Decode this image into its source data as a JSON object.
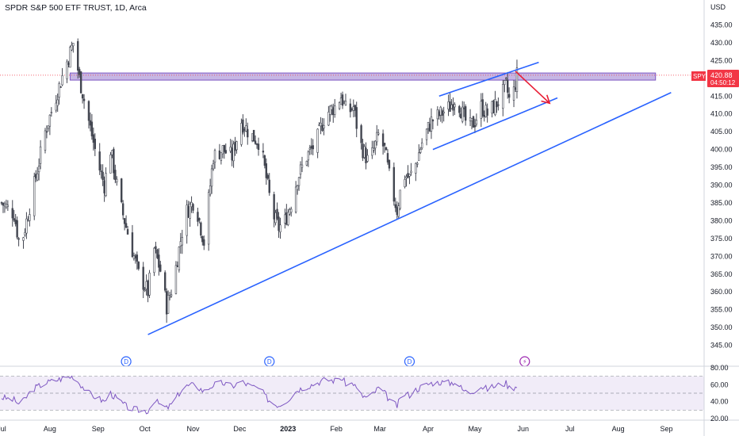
{
  "header": {
    "title": "SPDR S&P 500 ETF TRUST, 1D, Arca"
  },
  "axis": {
    "currency": "USD"
  },
  "price_label": {
    "symbol": "SPY",
    "price": "420.88",
    "countdown": "04:50:12"
  },
  "chart_data": {
    "type": "candlestick",
    "title": "SPDR S&P 500 ETF TRUST, 1D, Arca",
    "ylim": [
      340,
      438
    ],
    "yticks": [
      345,
      350,
      355,
      360,
      365,
      370,
      375,
      380,
      385,
      390,
      395,
      400,
      405,
      410,
      415,
      420,
      425,
      430,
      435
    ],
    "ytick_labels": [
      "345.00",
      "350.00",
      "355.00",
      "360.00",
      "365.00",
      "370.00",
      "375.00",
      "380.00",
      "385.00",
      "390.00",
      "395.00",
      "400.00",
      "405.00",
      "410.00",
      "415.00",
      "420.00",
      "425.00",
      "430.00",
      "435.00"
    ],
    "xticks": [
      {
        "label": "Jul",
        "day": 0
      },
      {
        "label": "Aug",
        "day": 31
      },
      {
        "label": "Sep",
        "day": 62
      },
      {
        "label": "Oct",
        "day": 92
      },
      {
        "label": "Nov",
        "day": 123
      },
      {
        "label": "Dec",
        "day": 153
      },
      {
        "label": "2023",
        "day": 184
      },
      {
        "label": "Feb",
        "day": 215
      },
      {
        "label": "Mar",
        "day": 243
      },
      {
        "label": "Apr",
        "day": 274
      },
      {
        "label": "May",
        "day": 304
      },
      {
        "label": "Jun",
        "day": 335
      },
      {
        "label": "Jul",
        "day": 365
      },
      {
        "label": "Aug",
        "day": 396
      },
      {
        "label": "Sep",
        "day": 427
      }
    ],
    "xlim_days": [
      0,
      440
    ],
    "anchors": [
      [
        0,
        385
      ],
      [
        8,
        382
      ],
      [
        12,
        372
      ],
      [
        20,
        388
      ],
      [
        28,
        405
      ],
      [
        40,
        422
      ],
      [
        46,
        430
      ],
      [
        50,
        420
      ],
      [
        56,
        408
      ],
      [
        62,
        396
      ],
      [
        66,
        390
      ],
      [
        70,
        400
      ],
      [
        76,
        385
      ],
      [
        82,
        375
      ],
      [
        88,
        365
      ],
      [
        94,
        360
      ],
      [
        98,
        372
      ],
      [
        102,
        366
      ],
      [
        106,
        356
      ],
      [
        110,
        362
      ],
      [
        114,
        372
      ],
      [
        118,
        382
      ],
      [
        124,
        386
      ],
      [
        130,
        374
      ],
      [
        136,
        398
      ],
      [
        142,
        400
      ],
      [
        148,
        398
      ],
      [
        154,
        408
      ],
      [
        160,
        404
      ],
      [
        166,
        402
      ],
      [
        170,
        392
      ],
      [
        174,
        382
      ],
      [
        178,
        378
      ],
      [
        182,
        380
      ],
      [
        186,
        385
      ],
      [
        190,
        392
      ],
      [
        196,
        398
      ],
      [
        202,
        402
      ],
      [
        208,
        410
      ],
      [
        214,
        412
      ],
      [
        218,
        415
      ],
      [
        222,
        410
      ],
      [
        226,
        412
      ],
      [
        230,
        402
      ],
      [
        236,
        396
      ],
      [
        242,
        404
      ],
      [
        246,
        400
      ],
      [
        250,
        390
      ],
      [
        254,
        383
      ],
      [
        258,
        393
      ],
      [
        262,
        392
      ],
      [
        266,
        396
      ],
      [
        270,
        402
      ],
      [
        276,
        408
      ],
      [
        282,
        410
      ],
      [
        288,
        412
      ],
      [
        292,
        415
      ],
      [
        296,
        410
      ],
      [
        300,
        406
      ],
      [
        304,
        408
      ],
      [
        308,
        412
      ],
      [
        312,
        410
      ],
      [
        316,
        412
      ],
      [
        320,
        414
      ],
      [
        324,
        418
      ],
      [
        327,
        412
      ],
      [
        331,
        420.88
      ]
    ],
    "resistance_zone": {
      "low": 419.5,
      "high": 421.5,
      "day_start": 44,
      "day_end": 420
    },
    "current_price": 420.88,
    "lines": [
      {
        "name": "ascending-support",
        "from": [
          94,
          348
        ],
        "to": [
          430,
          416
        ]
      },
      {
        "name": "channel-upper",
        "from": [
          281,
          415
        ],
        "to": [
          345,
          424.5
        ]
      },
      {
        "name": "channel-lower",
        "from": [
          277,
          400
        ],
        "to": [
          357,
          414.5
        ]
      }
    ],
    "arrow": {
      "from": [
        330,
        422
      ],
      "to": [
        352,
        413
      ]
    },
    "event_markers": [
      {
        "label": "D",
        "day": 80,
        "kind": "dividend"
      },
      {
        "label": "D",
        "day": 172,
        "kind": "dividend"
      },
      {
        "label": "D",
        "day": 262,
        "kind": "dividend"
      },
      {
        "label": "⚡",
        "day": 336,
        "kind": "earnings"
      }
    ],
    "rsi": {
      "ylim": [
        20,
        80
      ],
      "yticks": [
        20,
        40,
        60,
        80
      ],
      "ytick_labels": [
        "20.00",
        "40.00",
        "60.00",
        "80.00"
      ],
      "band": [
        30,
        70
      ],
      "midline": 50,
      "anchors": [
        [
          0,
          45
        ],
        [
          8,
          42
        ],
        [
          12,
          36
        ],
        [
          20,
          55
        ],
        [
          28,
          62
        ],
        [
          40,
          68
        ],
        [
          46,
          70
        ],
        [
          50,
          62
        ],
        [
          56,
          50
        ],
        [
          62,
          44
        ],
        [
          66,
          40
        ],
        [
          70,
          50
        ],
        [
          76,
          40
        ],
        [
          82,
          32
        ],
        [
          88,
          30
        ],
        [
          94,
          29
        ],
        [
          98,
          42
        ],
        [
          102,
          36
        ],
        [
          106,
          32
        ],
        [
          110,
          38
        ],
        [
          114,
          50
        ],
        [
          118,
          58
        ],
        [
          124,
          60
        ],
        [
          130,
          52
        ],
        [
          136,
          60
        ],
        [
          142,
          62
        ],
        [
          148,
          58
        ],
        [
          154,
          64
        ],
        [
          160,
          58
        ],
        [
          166,
          55
        ],
        [
          170,
          45
        ],
        [
          174,
          38
        ],
        [
          178,
          36
        ],
        [
          182,
          40
        ],
        [
          186,
          46
        ],
        [
          190,
          54
        ],
        [
          196,
          58
        ],
        [
          202,
          62
        ],
        [
          208,
          66
        ],
        [
          214,
          65
        ],
        [
          218,
          68
        ],
        [
          222,
          60
        ],
        [
          226,
          62
        ],
        [
          230,
          48
        ],
        [
          236,
          44
        ],
        [
          242,
          56
        ],
        [
          246,
          50
        ],
        [
          250,
          40
        ],
        [
          254,
          35
        ],
        [
          258,
          50
        ],
        [
          262,
          48
        ],
        [
          266,
          54
        ],
        [
          270,
          58
        ],
        [
          276,
          62
        ],
        [
          282,
          63
        ],
        [
          288,
          62
        ],
        [
          292,
          64
        ],
        [
          296,
          54
        ],
        [
          300,
          50
        ],
        [
          304,
          54
        ],
        [
          308,
          58
        ],
        [
          312,
          55
        ],
        [
          316,
          58
        ],
        [
          320,
          60
        ],
        [
          324,
          62
        ],
        [
          327,
          54
        ],
        [
          331,
          60
        ]
      ]
    }
  },
  "colors": {
    "up": "#26a69a",
    "down": "#ef5350",
    "candle_body": "#434651",
    "trend_line": "#2962ff",
    "zone_fill": "#b39ddb",
    "zone_border": "#7e57c2",
    "rsi_line": "#7e57c2",
    "rsi_band": "#ede7f6",
    "price_badge": "#f23645",
    "arrow": "#e91e35",
    "marker_d": "#2962ff",
    "marker_e": "#9c27b0",
    "axis_text": "#131722",
    "grid_border": "#d1d4dc"
  }
}
